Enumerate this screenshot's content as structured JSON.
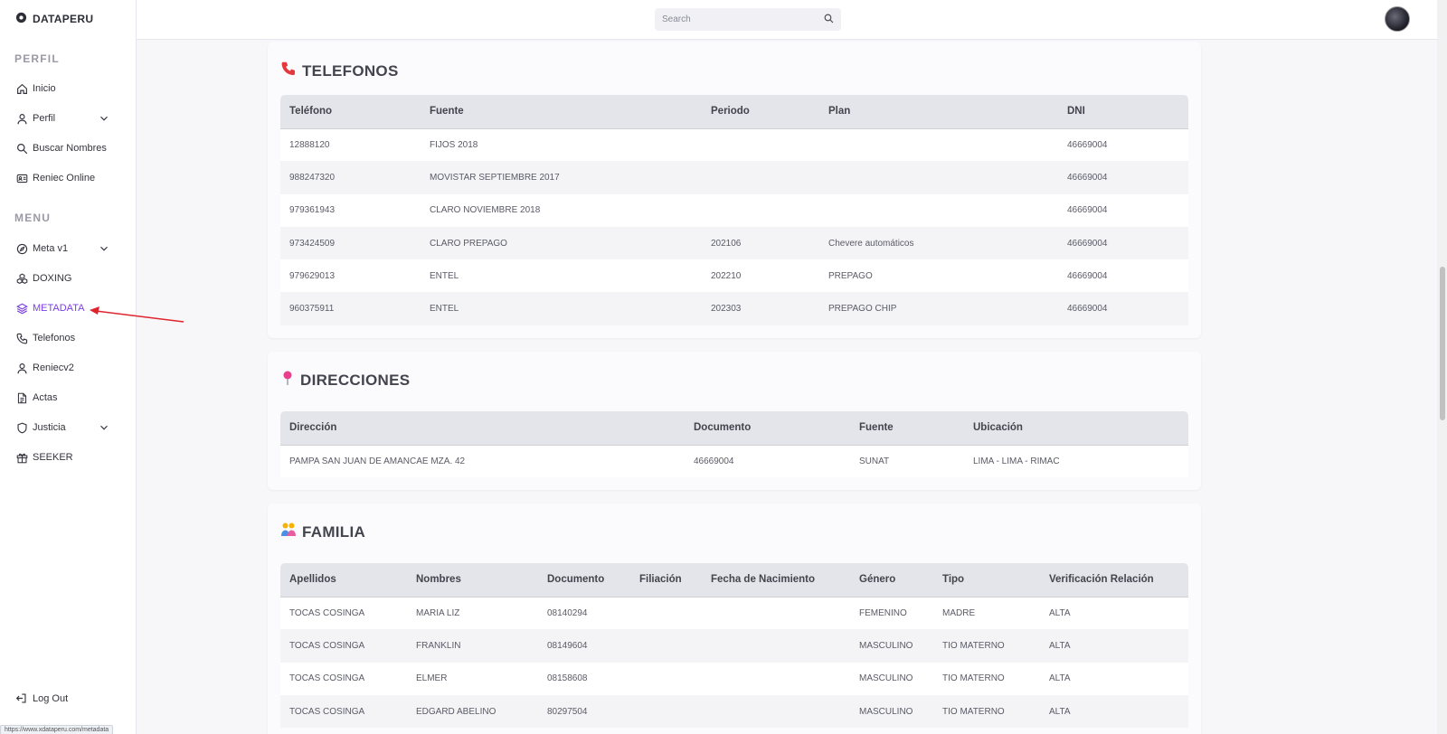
{
  "app": {
    "brand": "DATAPERU"
  },
  "sidebar": {
    "section_perfil": "PERFIL",
    "section_menu": "MENU",
    "items": [
      {
        "label": "Inicio"
      },
      {
        "label": "Perfil"
      },
      {
        "label": "Buscar Nombres"
      },
      {
        "label": "Reniec Online"
      },
      {
        "label": "Meta v1"
      },
      {
        "label": "DOXING"
      },
      {
        "label": "METADATA"
      },
      {
        "label": "Telefonos"
      },
      {
        "label": "Reniecv2"
      },
      {
        "label": "Actas"
      },
      {
        "label": "Justicia"
      },
      {
        "label": "SEEKER"
      }
    ],
    "logout": "Log Out",
    "active_color": "#7b3fe4"
  },
  "status_bar": {
    "url": "https://www.xdataperu.com/metadata"
  },
  "header": {
    "search_placeholder": "Search"
  },
  "telefonos": {
    "title": "TELEFONOS",
    "columns": [
      "Teléfono",
      "Fuente",
      "Periodo",
      "Plan",
      "DNI"
    ],
    "rows": [
      [
        "12888120",
        "FIJOS 2018",
        "",
        "",
        "46669004"
      ],
      [
        "988247320",
        "MOVISTAR SEPTIEMBRE 2017",
        "",
        "",
        "46669004"
      ],
      [
        "979361943",
        "CLARO NOVIEMBRE 2018",
        "",
        "",
        "46669004"
      ],
      [
        "973424509",
        "CLARO PREPAGO",
        "202106",
        "Chevere automáticos",
        "46669004"
      ],
      [
        "979629013",
        "ENTEL",
        "202210",
        "PREPAGO",
        "46669004"
      ],
      [
        "960375911",
        "ENTEL",
        "202303",
        "PREPAGO CHIP",
        "46669004"
      ]
    ]
  },
  "direcciones": {
    "title": "DIRECCIONES",
    "columns": [
      "Dirección",
      "Documento",
      "Fuente",
      "Ubicación"
    ],
    "rows": [
      [
        "PAMPA SAN JUAN DE AMANCAE MZA. 42",
        "46669004",
        "SUNAT",
        "LIMA - LIMA - RIMAC"
      ]
    ]
  },
  "familia": {
    "title": "FAMILIA",
    "columns": [
      "Apellidos",
      "Nombres",
      "Documento",
      "Filiación",
      "Fecha de Nacimiento",
      "Género",
      "Tipo",
      "Verificación Relación"
    ],
    "rows": [
      [
        "TOCAS COSINGA",
        "MARIA LIZ",
        "08140294",
        "",
        "",
        "FEMENINO",
        "MADRE",
        "ALTA"
      ],
      [
        "TOCAS COSINGA",
        "FRANKLIN",
        "08149604",
        "",
        "",
        "MASCULINO",
        "TIO MATERNO",
        "ALTA"
      ],
      [
        "TOCAS COSINGA",
        "ELMER",
        "08158608",
        "",
        "",
        "MASCULINO",
        "TIO MATERNO",
        "ALTA"
      ],
      [
        "TOCAS COSINGA",
        "EDGARD ABELINO",
        "80297504",
        "",
        "",
        "MASCULINO",
        "TIO MATERNO",
        "ALTA"
      ]
    ]
  }
}
